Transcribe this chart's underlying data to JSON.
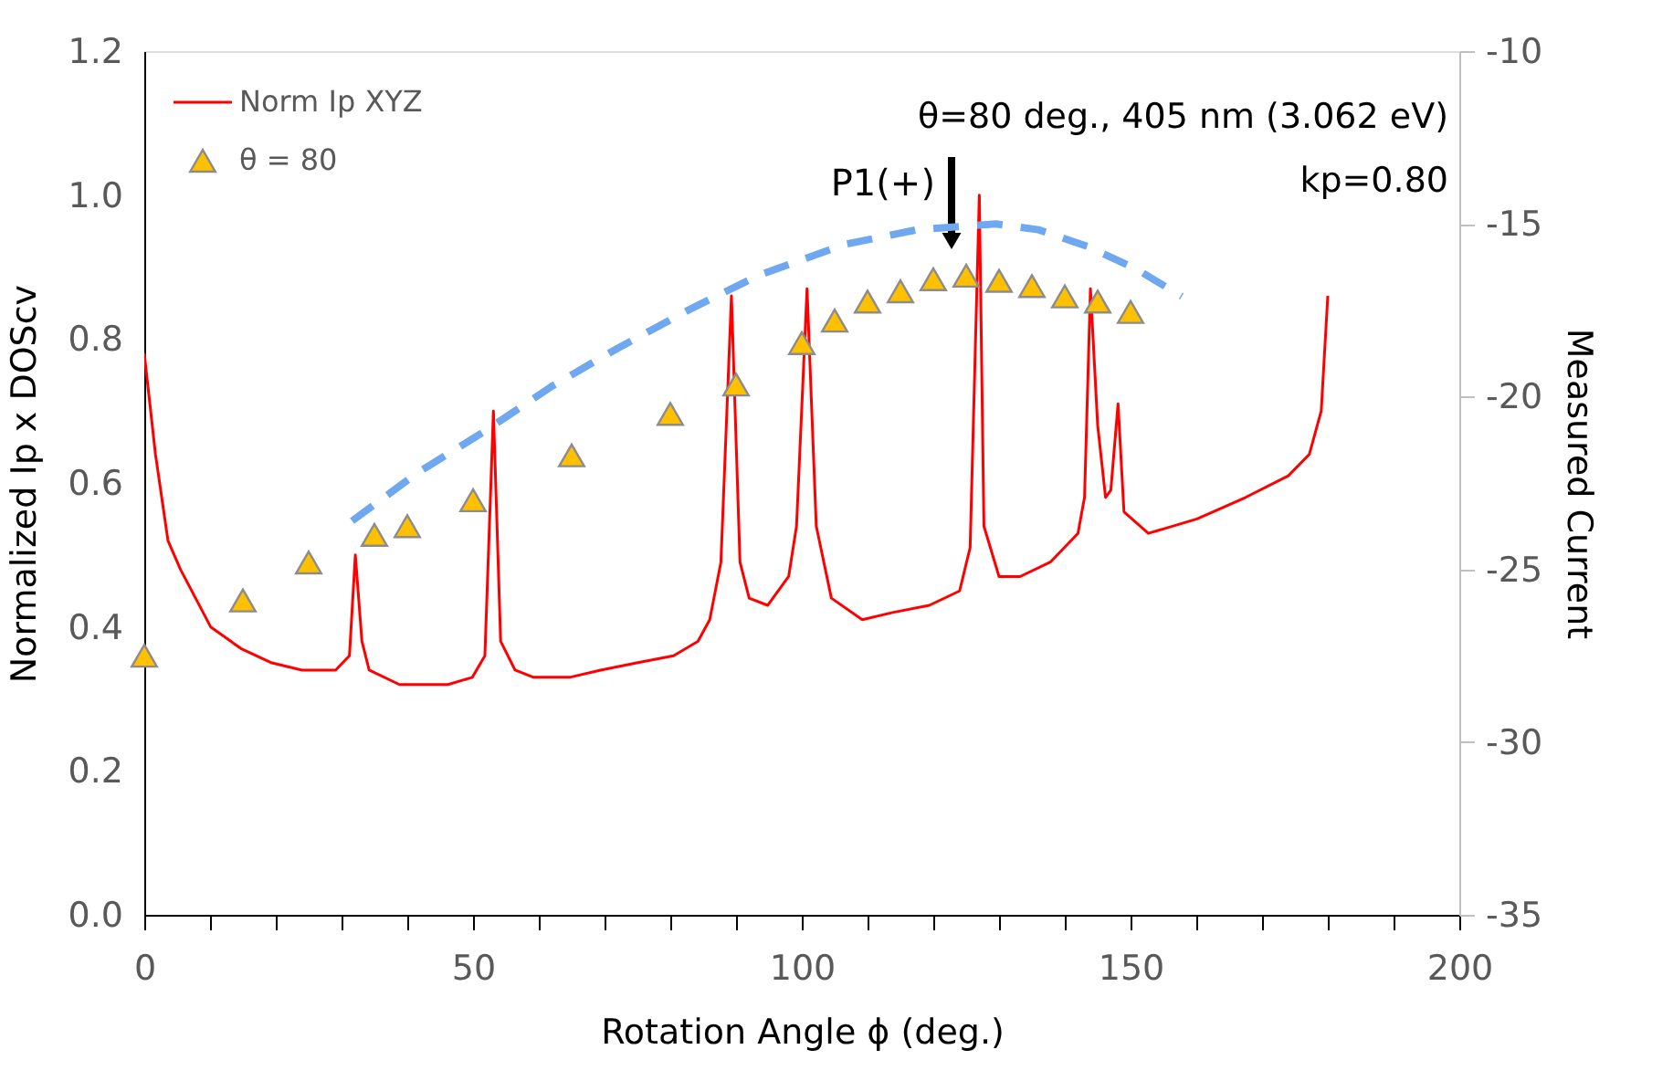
{
  "chart_data": {
    "type": "line",
    "xlabel": "Rotation Angle ϕ (deg.)",
    "ylabel": "Normalized Ip x DOScv",
    "y2label": "Measured Current",
    "xlim": [
      0,
      200
    ],
    "xticks": [
      0,
      {
        "value": 10,
        "label": null
      },
      {
        "value": 20,
        "label": null
      },
      {
        "value": 30,
        "label": null
      },
      {
        "value": 40,
        "label": null
      },
      50,
      {
        "value": 60,
        "label": null
      },
      {
        "value": 70,
        "label": null
      },
      {
        "value": 80,
        "label": null
      },
      {
        "value": 90,
        "label": null
      },
      100,
      {
        "value": 110,
        "label": null
      },
      {
        "value": 120,
        "label": null
      },
      {
        "value": 130,
        "label": null
      },
      {
        "value": 140,
        "label": null
      },
      150,
      {
        "value": 160,
        "label": null
      },
      {
        "value": 170,
        "label": null
      },
      {
        "value": 180,
        "label": null
      },
      {
        "value": 190,
        "label": null
      },
      200
    ],
    "ylim": [
      0,
      1.2
    ],
    "yticks": [
      {
        "value": 0,
        "label": "0.0"
      },
      0.2,
      0.4,
      0.6,
      0.8,
      {
        "value": 1,
        "label": "1.0"
      },
      1.2
    ],
    "y2lim": [
      -35,
      -10
    ],
    "y2ticks": [
      -35,
      -30,
      -25,
      -20,
      -15,
      -10
    ],
    "grid": false,
    "legend": "top left",
    "annotations": [
      "θ=80 deg., 405 nm (3.062 eV)",
      "kp=0.80",
      "P1(+)"
    ],
    "series": [
      {
        "name": "Norm Ip XYZ",
        "color": "#ff0000",
        "marker": "none",
        "x": [
          0,
          1.7,
          3.6,
          5.5,
          10.1,
          14.7,
          19.4,
          24,
          29.1,
          31.2,
          32.1,
          33.1,
          34.2,
          38.8,
          46.2,
          49.9,
          51.8,
          53.1,
          54.2,
          56.4,
          59.2,
          64.7,
          69.4,
          74.9,
          80.5,
          84.2,
          86,
          87.7,
          89.3,
          90.6,
          92,
          94.8,
          98,
          99.2,
          100.8,
          102.2,
          104.5,
          109.2,
          113.8,
          119.4,
          124,
          125.6,
          127,
          127.7,
          130,
          133.2,
          137.8,
          142,
          143,
          143.9,
          145,
          146.2,
          147,
          148.1,
          149,
          152.7,
          160.1,
          167.5,
          174,
          177.2,
          179,
          180
        ],
        "values": [
          0.78,
          0.64,
          0.52,
          0.48,
          0.4,
          0.37,
          0.35,
          0.34,
          0.34,
          0.36,
          0.5,
          0.38,
          0.34,
          0.32,
          0.32,
          0.33,
          0.36,
          0.7,
          0.38,
          0.34,
          0.33,
          0.33,
          0.34,
          0.35,
          0.36,
          0.38,
          0.41,
          0.49,
          0.86,
          0.49,
          0.44,
          0.43,
          0.47,
          0.54,
          0.87,
          0.54,
          0.44,
          0.41,
          0.42,
          0.43,
          0.45,
          0.51,
          1.0,
          0.54,
          0.47,
          0.47,
          0.49,
          0.53,
          0.58,
          0.87,
          0.68,
          0.58,
          0.59,
          0.71,
          0.56,
          0.53,
          0.55,
          0.58,
          0.61,
          0.64,
          0.7,
          0.86
        ]
      },
      {
        "name": "θ = 80",
        "type": "scatter",
        "axis": "y2",
        "color": "#ffc000",
        "marker": "triangle",
        "x": [
          0,
          15,
          25,
          35,
          40,
          50,
          65,
          80,
          90,
          100,
          105,
          110,
          115,
          120,
          125,
          130,
          135,
          140,
          145,
          150
        ],
        "values": [
          -27.5,
          -25.9,
          -24.8,
          -24.0,
          -23.75,
          -23.0,
          -21.7,
          -20.5,
          -19.65,
          -18.45,
          -17.8,
          -17.25,
          -16.95,
          -16.6,
          -16.5,
          -16.65,
          -16.8,
          -17.1,
          -17.25,
          -17.55
        ]
      },
      {
        "type": "line",
        "axis": "y2",
        "color": "#6fa8f0",
        "line_style": "dashed",
        "marker": "none",
        "x": [
          31.6,
          41.6,
          51.8,
          62,
          72,
          82.7,
          93.3,
          106.4,
          117.5,
          129.5,
          136,
          143.4,
          150.8,
          157.8
        ],
        "values": [
          -23.6,
          -22.2,
          -21.0,
          -19.7,
          -18.6,
          -17.5,
          -16.5,
          -15.6,
          -15.17,
          -15.0,
          -15.17,
          -15.65,
          -16.3,
          -17.1
        ]
      }
    ]
  }
}
